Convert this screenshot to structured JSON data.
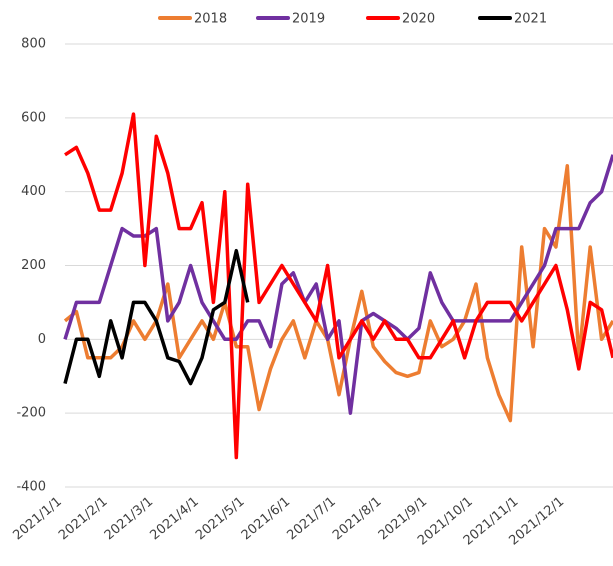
{
  "chart_data": {
    "type": "line",
    "categories": [
      "2021/1/1",
      null,
      null,
      null,
      "2021/2/1",
      null,
      null,
      null,
      "2021/3/1",
      null,
      null,
      null,
      "2021/4/1",
      null,
      null,
      null,
      "2021/5/1",
      null,
      null,
      null,
      "2021/6/1",
      null,
      null,
      null,
      "2021/7/1",
      null,
      null,
      null,
      "2021/8/1",
      null,
      null,
      null,
      "2021/9/1",
      null,
      null,
      null,
      "2021/10/1",
      null,
      null,
      null,
      "2021/11/1",
      null,
      null,
      null,
      "2021/12/1",
      null,
      null,
      null,
      null
    ],
    "series": [
      {
        "name": "2018",
        "color": "#ed7d31",
        "values": [
          50,
          75,
          -50,
          -50,
          -50,
          -20,
          50,
          0,
          50,
          150,
          -50,
          0,
          50,
          0,
          100,
          -20,
          -20,
          -190,
          -80,
          0,
          50,
          -50,
          50,
          0,
          -150,
          0,
          130,
          -20,
          -60,
          -90,
          -100,
          -90,
          50,
          -20,
          0,
          50,
          150,
          -50,
          -150,
          -220,
          250,
          -20,
          300,
          250,
          470,
          -50,
          250,
          0,
          50
        ]
      },
      {
        "name": "2019",
        "color": "#7030a0",
        "values": [
          0,
          100,
          100,
          100,
          200,
          300,
          280,
          280,
          300,
          50,
          100,
          200,
          100,
          50,
          0,
          0,
          50,
          50,
          -20,
          150,
          180,
          100,
          150,
          0,
          50,
          -200,
          50,
          70,
          50,
          30,
          0,
          30,
          180,
          100,
          50,
          50,
          50,
          50,
          50,
          50,
          100,
          150,
          200,
          300,
          300,
          300,
          370,
          400,
          500
        ]
      },
      {
        "name": "2020",
        "color": "#ff0000",
        "values": [
          500,
          520,
          450,
          350,
          350,
          450,
          610,
          200,
          550,
          450,
          300,
          300,
          370,
          100,
          400,
          -320,
          420,
          100,
          150,
          200,
          150,
          100,
          50,
          200,
          -50,
          0,
          50,
          0,
          50,
          0,
          0,
          -50,
          -50,
          0,
          50,
          -50,
          50,
          100,
          100,
          100,
          50,
          100,
          150,
          200,
          80,
          -80,
          100,
          80,
          -50
        ]
      },
      {
        "name": "2021",
        "color": "#000000",
        "values": [
          -120,
          0,
          0,
          -100,
          50,
          -50,
          100,
          100,
          50,
          -50,
          -60,
          -120,
          -50,
          80,
          100,
          240,
          100,
          null,
          null,
          null,
          null,
          null,
          null,
          null,
          null,
          null,
          null,
          null,
          null,
          null,
          null,
          null,
          null,
          null,
          null,
          null,
          null,
          null,
          null,
          null,
          null,
          null,
          null,
          null,
          null,
          null,
          null,
          null,
          null
        ]
      }
    ],
    "ylim": [
      -400,
      800
    ],
    "yticks": [
      -400,
      -200,
      0,
      200,
      400,
      600,
      800
    ],
    "grid": true
  }
}
